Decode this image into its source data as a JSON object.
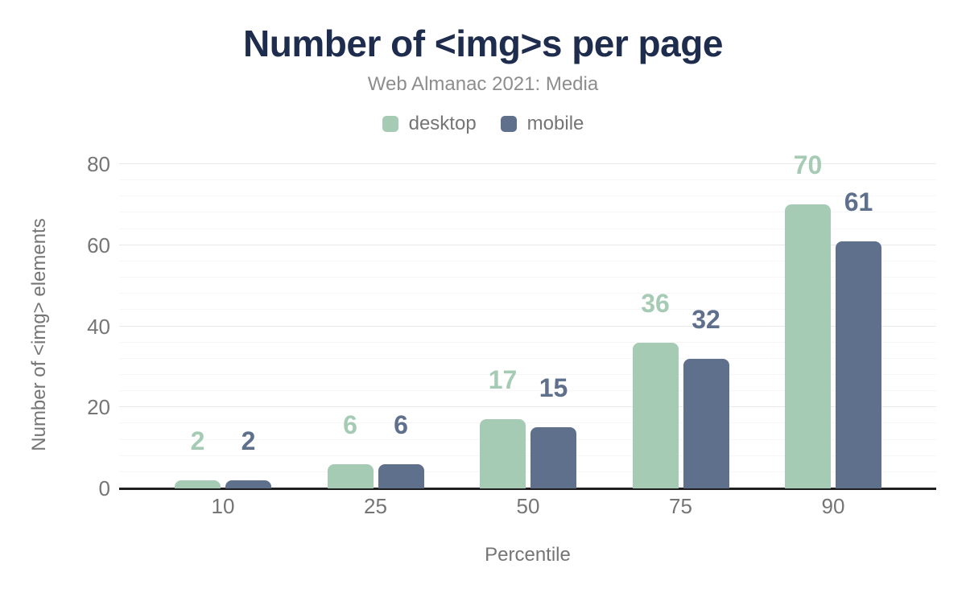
{
  "chart_data": {
    "type": "bar",
    "title": "Number of <img>s per page",
    "subtitle": "Web Almanac 2021: Media",
    "xlabel": "Percentile",
    "ylabel": "Number of <img> elements",
    "categories": [
      "10",
      "25",
      "50",
      "75",
      "90"
    ],
    "series": [
      {
        "name": "desktop",
        "color": "#a6cbb5",
        "values": [
          2,
          6,
          17,
          36,
          70
        ]
      },
      {
        "name": "mobile",
        "color": "#5e708c",
        "values": [
          2,
          6,
          15,
          32,
          61
        ]
      }
    ],
    "ylim": [
      0,
      80
    ],
    "yticks": [
      0,
      20,
      40,
      60,
      80
    ],
    "minor_grid_step": 4,
    "grid": true,
    "legend_position": "top",
    "colors": {
      "title": "#1e2c4e",
      "subtitle": "#8d8d8d",
      "axis_text": "#757575",
      "axis_line": "#1f1f1f",
      "major_grid": "#e9e9e9",
      "minor_grid": "#f6f6f6"
    }
  }
}
